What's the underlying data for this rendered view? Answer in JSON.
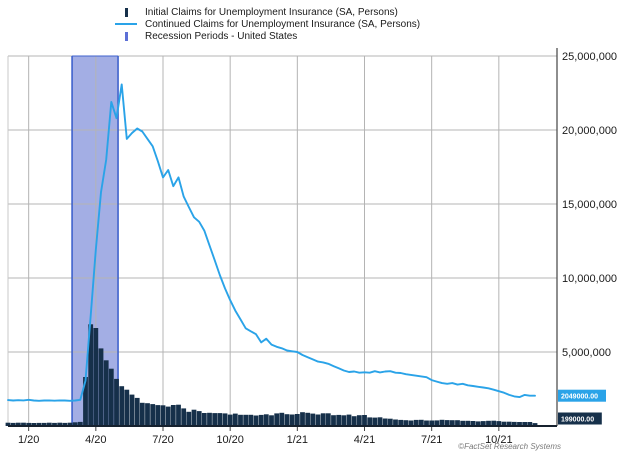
{
  "footer": {
    "copyright": "©FactSet Research Systems"
  },
  "chart_data": {
    "type": "combo",
    "title": "",
    "unit": "persons",
    "frequency": "weekly",
    "colors": {
      "initial_claims": "#16304a",
      "continued_claims": "#2aa3e8",
      "recession_fill": "#a3aee4",
      "recession_border": "#3f62cc",
      "recession_marker": "#5c6fd6",
      "gridline": "#b4b4b4",
      "axis": "#444444",
      "x_axis_line": "#16212e",
      "label_text": "#1a1a1a"
    },
    "y_axis": {
      "min": 0,
      "max": 25000000,
      "tick_interval": 5000000,
      "tick_values_millions": [
        5,
        10,
        15,
        20,
        25
      ],
      "tick_labels": [
        "5,000,000",
        "10,000,000",
        "15,000,000",
        "20,000,000",
        "25,000,000"
      ],
      "side": "right",
      "grid": true
    },
    "x_axis": {
      "tick_labels": [
        "1/20",
        "4/20",
        "7/20",
        "10/20",
        "1/21",
        "4/21",
        "7/21",
        "10/21"
      ],
      "tick_week_indices": [
        4,
        17,
        30,
        43,
        56,
        69,
        82,
        95
      ],
      "grid": true
    },
    "recession": {
      "label": "Recession Periods - United States",
      "from_week": 12.4,
      "to_week": 21.3
    },
    "series": [
      {
        "name": "Initial Claims for Unemployment Insurance (SA, Persons)",
        "type": "bar",
        "color_key": "initial_claims",
        "values_millions": [
          0.22,
          0.21,
          0.22,
          0.22,
          0.21,
          0.2,
          0.21,
          0.21,
          0.22,
          0.21,
          0.22,
          0.21,
          0.22,
          0.25,
          0.28,
          3.31,
          6.87,
          6.62,
          5.24,
          4.44,
          3.87,
          3.18,
          2.69,
          2.45,
          2.12,
          1.9,
          1.57,
          1.54,
          1.48,
          1.41,
          1.4,
          1.31,
          1.42,
          1.44,
          1.19,
          0.96,
          1.1,
          1.01,
          0.88,
          0.89,
          0.87,
          0.87,
          0.85,
          0.77,
          0.84,
          0.76,
          0.76,
          0.76,
          0.71,
          0.75,
          0.79,
          0.72,
          0.85,
          0.89,
          0.8,
          0.78,
          0.81,
          0.93,
          0.89,
          0.84,
          0.78,
          0.86,
          0.86,
          0.73,
          0.75,
          0.72,
          0.77,
          0.66,
          0.73,
          0.74,
          0.58,
          0.57,
          0.59,
          0.51,
          0.49,
          0.44,
          0.41,
          0.39,
          0.37,
          0.41,
          0.42,
          0.37,
          0.37,
          0.38,
          0.42,
          0.4,
          0.39,
          0.39,
          0.35,
          0.35,
          0.34,
          0.31,
          0.33,
          0.35,
          0.36,
          0.33,
          0.29,
          0.29,
          0.28,
          0.27,
          0.27,
          0.27,
          0.199
        ]
      },
      {
        "name": "Continued Claims for Unemployment Insurance (SA, Persons)",
        "type": "line",
        "color_key": "continued_claims",
        "values_millions": [
          1.75,
          1.72,
          1.74,
          1.73,
          1.77,
          1.72,
          1.7,
          1.72,
          1.73,
          1.71,
          1.73,
          1.72,
          1.7,
          1.72,
          1.77,
          3.06,
          7.45,
          11.9,
          15.8,
          18.0,
          21.9,
          20.8,
          23.08,
          19.4,
          19.8,
          20.1,
          19.9,
          19.4,
          18.9,
          17.9,
          16.8,
          17.3,
          16.2,
          16.8,
          15.5,
          14.8,
          14.1,
          13.8,
          13.2,
          12.2,
          11.2,
          10.2,
          9.3,
          8.5,
          7.8,
          7.2,
          6.6,
          6.4,
          6.2,
          5.65,
          5.9,
          5.5,
          5.35,
          5.25,
          5.1,
          5.05,
          5.0,
          4.8,
          4.65,
          4.5,
          4.35,
          4.3,
          4.2,
          4.05,
          3.9,
          3.75,
          3.65,
          3.68,
          3.6,
          3.63,
          3.6,
          3.7,
          3.62,
          3.68,
          3.7,
          3.6,
          3.58,
          3.5,
          3.45,
          3.4,
          3.35,
          3.3,
          3.1,
          3.0,
          2.9,
          2.85,
          2.9,
          2.8,
          2.85,
          2.75,
          2.7,
          2.65,
          2.6,
          2.55,
          2.45,
          2.35,
          2.25,
          2.1,
          2.0,
          1.95,
          2.1,
          2.05,
          2.049
        ]
      }
    ],
    "last_value_labels": [
      {
        "text": "2049000.00",
        "series_index": 1,
        "color_key": "continued_claims"
      },
      {
        "text": "199000.00",
        "series_index": 0,
        "color_key": "initial_claims"
      }
    ]
  }
}
